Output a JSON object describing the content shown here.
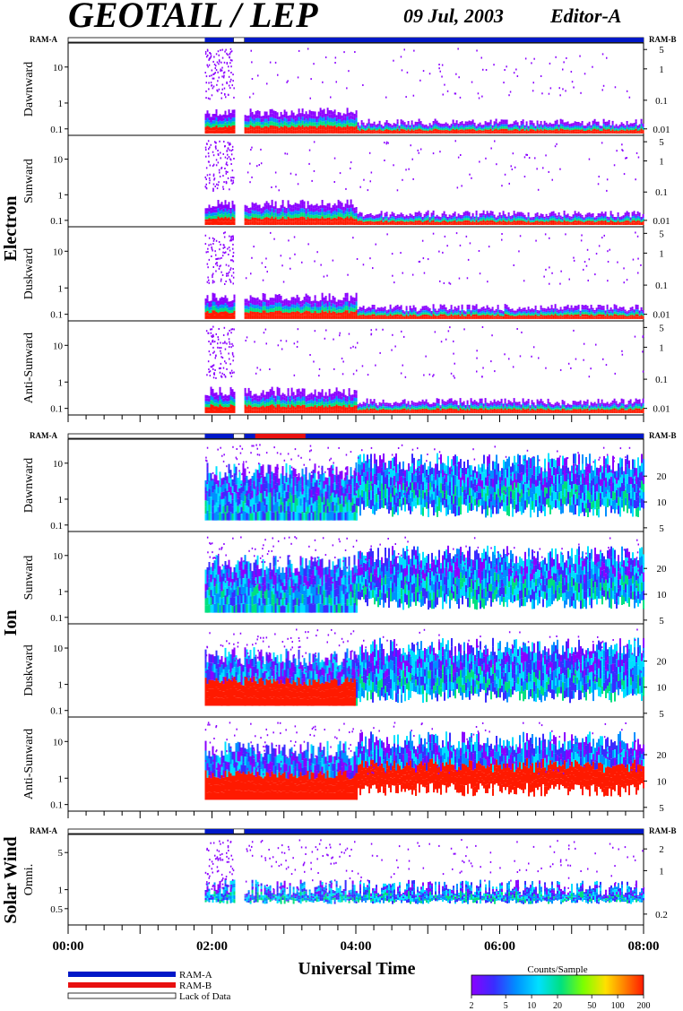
{
  "header": {
    "title": "GEOTAIL / LEP",
    "date": "09 Jul, 2003",
    "editor": "Editor-A"
  },
  "groups": {
    "electron": "Electron",
    "ion": "Ion",
    "solar_wind": "Solar Wind"
  },
  "ram": {
    "a": "RAM-A",
    "b": "RAM-B"
  },
  "legend": {
    "ram_a": "RAM-A",
    "ram_b": "RAM-B",
    "lack": "Lack of Data",
    "ram_a_color": "#0018c8",
    "ram_b_color": "#e81010"
  },
  "colorbar": {
    "title": "Counts/Sample",
    "ticks": [
      "2",
      "5",
      "10",
      "20",
      "50",
      "100",
      "200"
    ],
    "colors": [
      "#8a00ff",
      "#3a2cff",
      "#0090ff",
      "#00e0ff",
      "#00e080",
      "#7cff00",
      "#ffe000",
      "#ff8000",
      "#ff1a00"
    ]
  },
  "x_axis": {
    "title": "Universal Time",
    "ticks": [
      "00:00",
      "02:00",
      "04:00",
      "06:00",
      "08:00"
    ],
    "range_hours": [
      0,
      8
    ]
  },
  "chart_data": [
    {
      "type": "heatmap",
      "group": "Electron",
      "ylabel": "Dawnward",
      "left_ticks": [
        "10",
        "1",
        "0.1"
      ],
      "right_ticks": [
        "5",
        "1",
        "0.1",
        "0.01"
      ],
      "coverage_hours": [
        [
          1.9,
          2.3
        ],
        [
          2.45,
          8.0
        ]
      ],
      "ram_b_hours": []
    },
    {
      "type": "heatmap",
      "group": "Electron",
      "ylabel": "Sunward",
      "left_ticks": [
        "10",
        "1",
        "0.1"
      ],
      "right_ticks": [
        "5",
        "1",
        "0.1",
        "0.01"
      ],
      "coverage_hours": [
        [
          1.9,
          2.3
        ],
        [
          2.45,
          8.0
        ]
      ],
      "ram_b_hours": []
    },
    {
      "type": "heatmap",
      "group": "Electron",
      "ylabel": "Duskward",
      "left_ticks": [
        "10",
        "1",
        "0.1"
      ],
      "right_ticks": [
        "5",
        "1",
        "0.1",
        "0.01"
      ],
      "coverage_hours": [
        [
          1.9,
          2.3
        ],
        [
          2.45,
          8.0
        ]
      ],
      "ram_b_hours": []
    },
    {
      "type": "heatmap",
      "group": "Electron",
      "ylabel": "Anti-Sunward",
      "left_ticks": [
        "10",
        "1",
        "0.1"
      ],
      "right_ticks": [
        "5",
        "1",
        "0.1",
        "0.01"
      ],
      "coverage_hours": [
        [
          1.9,
          2.3
        ],
        [
          2.45,
          8.0
        ]
      ],
      "ram_b_hours": []
    },
    {
      "type": "heatmap",
      "group": "Ion",
      "ylabel": "Dawnward",
      "left_ticks": [
        "10",
        "1",
        "0.1"
      ],
      "right_ticks": [
        "20",
        "10",
        "5"
      ],
      "coverage_hours": [
        [
          1.9,
          4.0
        ],
        [
          4.0,
          8.0
        ]
      ],
      "ram_b_hours": [
        [
          2.6,
          3.3
        ]
      ]
    },
    {
      "type": "heatmap",
      "group": "Ion",
      "ylabel": "Sunward",
      "left_ticks": [
        "10",
        "1",
        "0.1"
      ],
      "right_ticks": [
        "20",
        "10",
        "5"
      ],
      "coverage_hours": [
        [
          1.9,
          4.0
        ],
        [
          4.0,
          8.0
        ]
      ],
      "ram_b_hours": []
    },
    {
      "type": "heatmap",
      "group": "Ion",
      "ylabel": "Duskward",
      "left_ticks": [
        "10",
        "1",
        "0.1"
      ],
      "right_ticks": [
        "20",
        "10",
        "5"
      ],
      "coverage_hours": [
        [
          1.9,
          4.0
        ],
        [
          4.0,
          8.0
        ]
      ],
      "ram_b_hours": []
    },
    {
      "type": "heatmap",
      "group": "Ion",
      "ylabel": "Anti-Sunward",
      "left_ticks": [
        "10",
        "1",
        "0.1"
      ],
      "right_ticks": [
        "20",
        "10",
        "5"
      ],
      "coverage_hours": [
        [
          1.9,
          4.0
        ],
        [
          4.0,
          8.0
        ]
      ],
      "ram_b_hours": []
    },
    {
      "type": "heatmap",
      "group": "Solar Wind",
      "ylabel": "Omni.",
      "left_ticks": [
        "5",
        "1",
        "0.5"
      ],
      "right_ticks": [
        "2",
        "1",
        "0.2"
      ],
      "coverage_hours": [
        [
          1.9,
          2.3
        ],
        [
          2.45,
          4.0
        ],
        [
          4.0,
          8.0
        ]
      ],
      "ram_b_hours": []
    }
  ]
}
